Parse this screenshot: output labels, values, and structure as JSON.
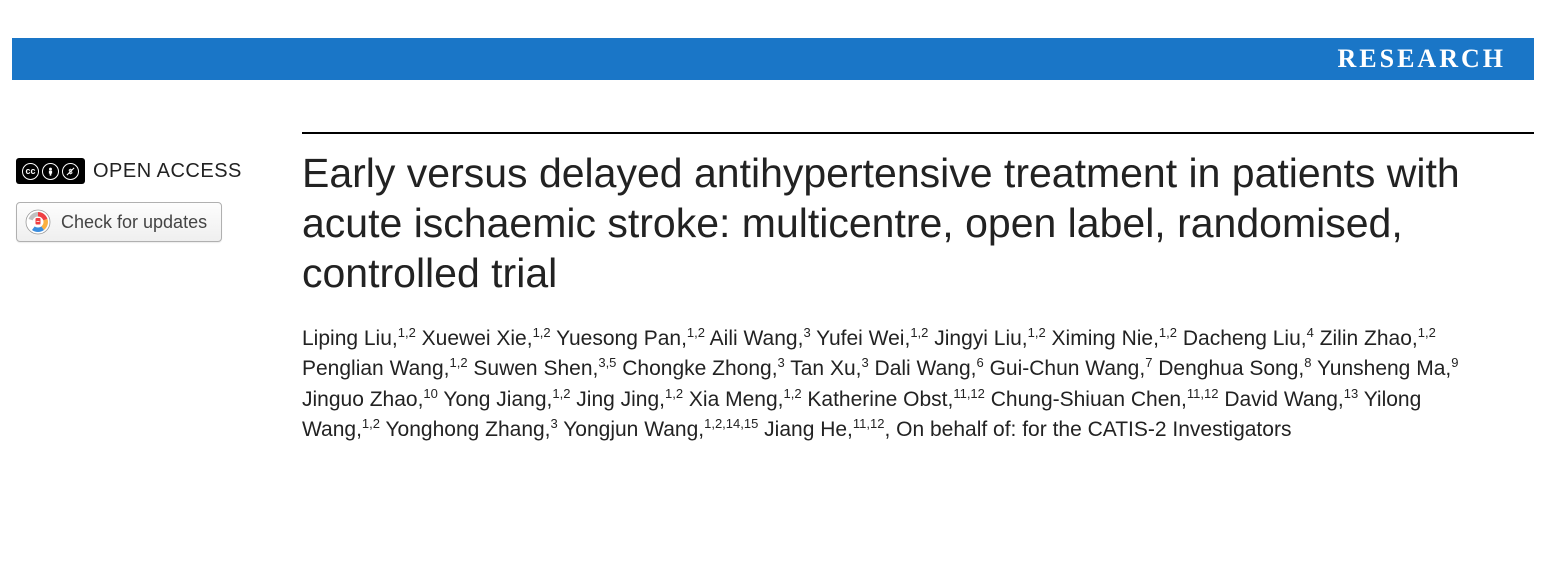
{
  "banner": {
    "label": "RESEARCH",
    "bg_color": "#1a76c7",
    "text_color": "#ffffff"
  },
  "left": {
    "open_access_label": "OPEN ACCESS",
    "cc_text": "cc",
    "updates_label": "Check for updates"
  },
  "article": {
    "title": "Early versus delayed antihypertensive treatment in patients with acute ischaemic stroke: multicentre, open label, randomised, controlled trial",
    "authors": [
      {
        "name": "Liping Liu",
        "affil": "1,2"
      },
      {
        "name": "Xuewei Xie",
        "affil": "1,2"
      },
      {
        "name": "Yuesong Pan",
        "affil": "1,2"
      },
      {
        "name": "Aili Wang",
        "affil": "3"
      },
      {
        "name": "Yufei Wei",
        "affil": "1,2"
      },
      {
        "name": "Jingyi Liu",
        "affil": "1,2"
      },
      {
        "name": "Ximing Nie",
        "affil": "1,2"
      },
      {
        "name": "Dacheng Liu",
        "affil": "4"
      },
      {
        "name": "Zilin Zhao",
        "affil": "1,2"
      },
      {
        "name": "Penglian Wang",
        "affil": "1,2"
      },
      {
        "name": "Suwen Shen",
        "affil": "3,5"
      },
      {
        "name": "Chongke Zhong",
        "affil": "3"
      },
      {
        "name": "Tan Xu",
        "affil": "3"
      },
      {
        "name": "Dali Wang",
        "affil": "6"
      },
      {
        "name": "Gui-Chun Wang",
        "affil": "7"
      },
      {
        "name": "Denghua Song",
        "affil": "8"
      },
      {
        "name": "Yunsheng Ma",
        "affil": "9"
      },
      {
        "name": "Jinguo Zhao",
        "affil": "10"
      },
      {
        "name": "Yong Jiang",
        "affil": "1,2"
      },
      {
        "name": "Jing Jing",
        "affil": "1,2"
      },
      {
        "name": "Xia Meng",
        "affil": "1,2"
      },
      {
        "name": "Katherine Obst",
        "affil": "11,12"
      },
      {
        "name": "Chung-Shiuan Chen",
        "affil": "11,12"
      },
      {
        "name": "David Wang",
        "affil": "13"
      },
      {
        "name": "Yilong Wang",
        "affil": "1,2"
      },
      {
        "name": "Yonghong Zhang",
        "affil": "3"
      },
      {
        "name": "Yongjun Wang",
        "affil": "1,2,14,15"
      },
      {
        "name": "Jiang He",
        "affil": "11,12"
      }
    ],
    "behalf_text": "On behalf of: for the CATIS-2 Investigators"
  }
}
